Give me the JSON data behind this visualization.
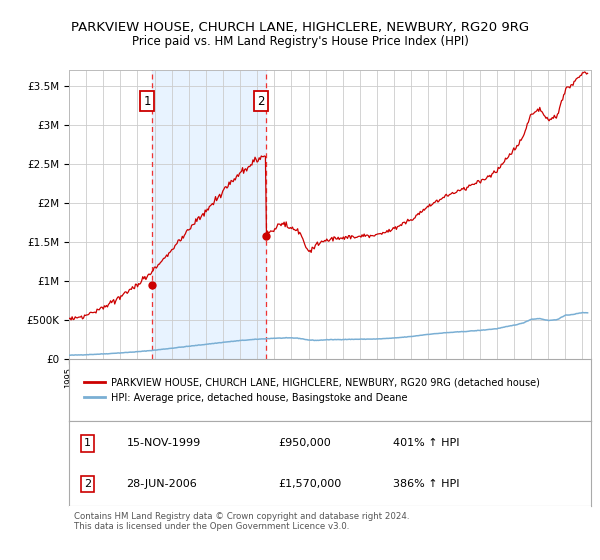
{
  "title": "PARKVIEW HOUSE, CHURCH LANE, HIGHCLERE, NEWBURY, RG20 9RG",
  "subtitle": "Price paid vs. HM Land Registry's House Price Index (HPI)",
  "background_color": "#ffffff",
  "grid_color": "#cccccc",
  "ylabel_ticks": [
    "£0",
    "£500K",
    "£1M",
    "£1.5M",
    "£2M",
    "£2.5M",
    "£3M",
    "£3.5M"
  ],
  "ytick_values": [
    0,
    500000,
    1000000,
    1500000,
    2000000,
    2500000,
    3000000,
    3500000
  ],
  "ylim": [
    0,
    3700000
  ],
  "xlim_start": 1995.0,
  "xlim_end": 2025.5,
  "sale1_x": 1999.875,
  "sale1_y": 950000,
  "sale2_x": 2006.5,
  "sale2_y": 1570000,
  "sale1_label": "1",
  "sale2_label": "2",
  "vline1_x": 1999.875,
  "vline2_x": 2006.5,
  "sale_color": "#cc0000",
  "hpi_color": "#7aafd4",
  "vline_color": "#ee3333",
  "shade_color": "#ddeeff",
  "legend_line1": "PARKVIEW HOUSE, CHURCH LANE, HIGHCLERE, NEWBURY, RG20 9RG (detached house)",
  "legend_line2": "HPI: Average price, detached house, Basingstoke and Deane",
  "table_row1": [
    "1",
    "15-NOV-1999",
    "£950,000",
    "401% ↑ HPI"
  ],
  "table_row2": [
    "2",
    "28-JUN-2006",
    "£1,570,000",
    "386% ↑ HPI"
  ],
  "footer": "Contains HM Land Registry data © Crown copyright and database right 2024.\nThis data is licensed under the Open Government Licence v3.0.",
  "title_fontsize": 9.5,
  "subtitle_fontsize": 8.5,
  "tick_fontsize": 7.5
}
